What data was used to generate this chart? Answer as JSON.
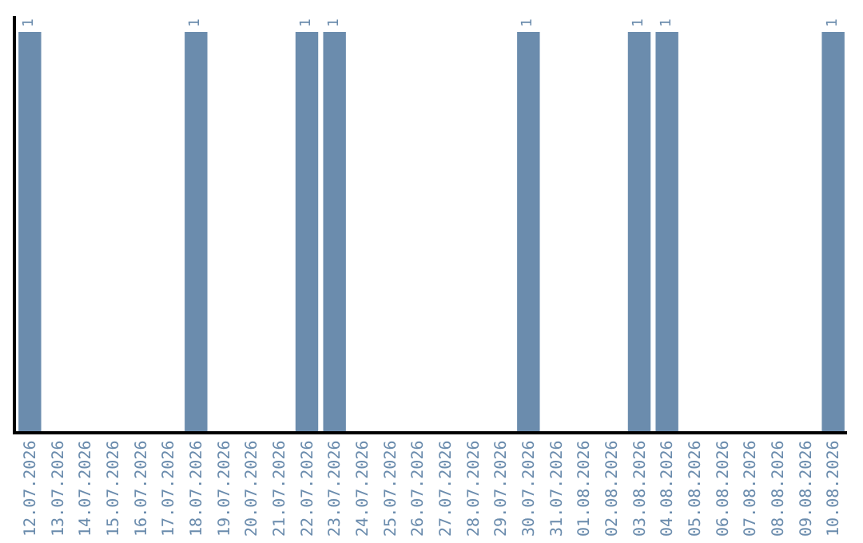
{
  "chart_data": {
    "type": "bar",
    "categories": [
      "12.07.2026",
      "13.07.2026",
      "14.07.2026",
      "15.07.2026",
      "16.07.2026",
      "17.07.2026",
      "18.07.2026",
      "19.07.2026",
      "20.07.2026",
      "21.07.2026",
      "22.07.2026",
      "23.07.2026",
      "24.07.2026",
      "25.07.2026",
      "26.07.2026",
      "27.07.2026",
      "28.07.2026",
      "29.07.2026",
      "30.07.2026",
      "31.07.2026",
      "01.08.2026",
      "02.08.2026",
      "03.08.2026",
      "04.08.2026",
      "05.08.2026",
      "06.08.2026",
      "07.08.2026",
      "08.08.2026",
      "09.08.2026",
      "10.08.2026"
    ],
    "values": [
      1,
      0,
      0,
      0,
      0,
      0,
      1,
      0,
      0,
      0,
      1,
      1,
      0,
      0,
      0,
      0,
      0,
      0,
      1,
      0,
      0,
      0,
      1,
      1,
      0,
      0,
      0,
      0,
      0,
      1
    ],
    "value_labels": [
      "1",
      null,
      null,
      null,
      null,
      null,
      "1",
      null,
      null,
      null,
      "1",
      "1",
      null,
      null,
      null,
      null,
      null,
      null,
      "1",
      null,
      null,
      null,
      "1",
      "1",
      null,
      null,
      null,
      null,
      null,
      "1"
    ],
    "color": "#6b8cad",
    "ylim": [
      0,
      1.04
    ],
    "tick_labels": "x"
  }
}
